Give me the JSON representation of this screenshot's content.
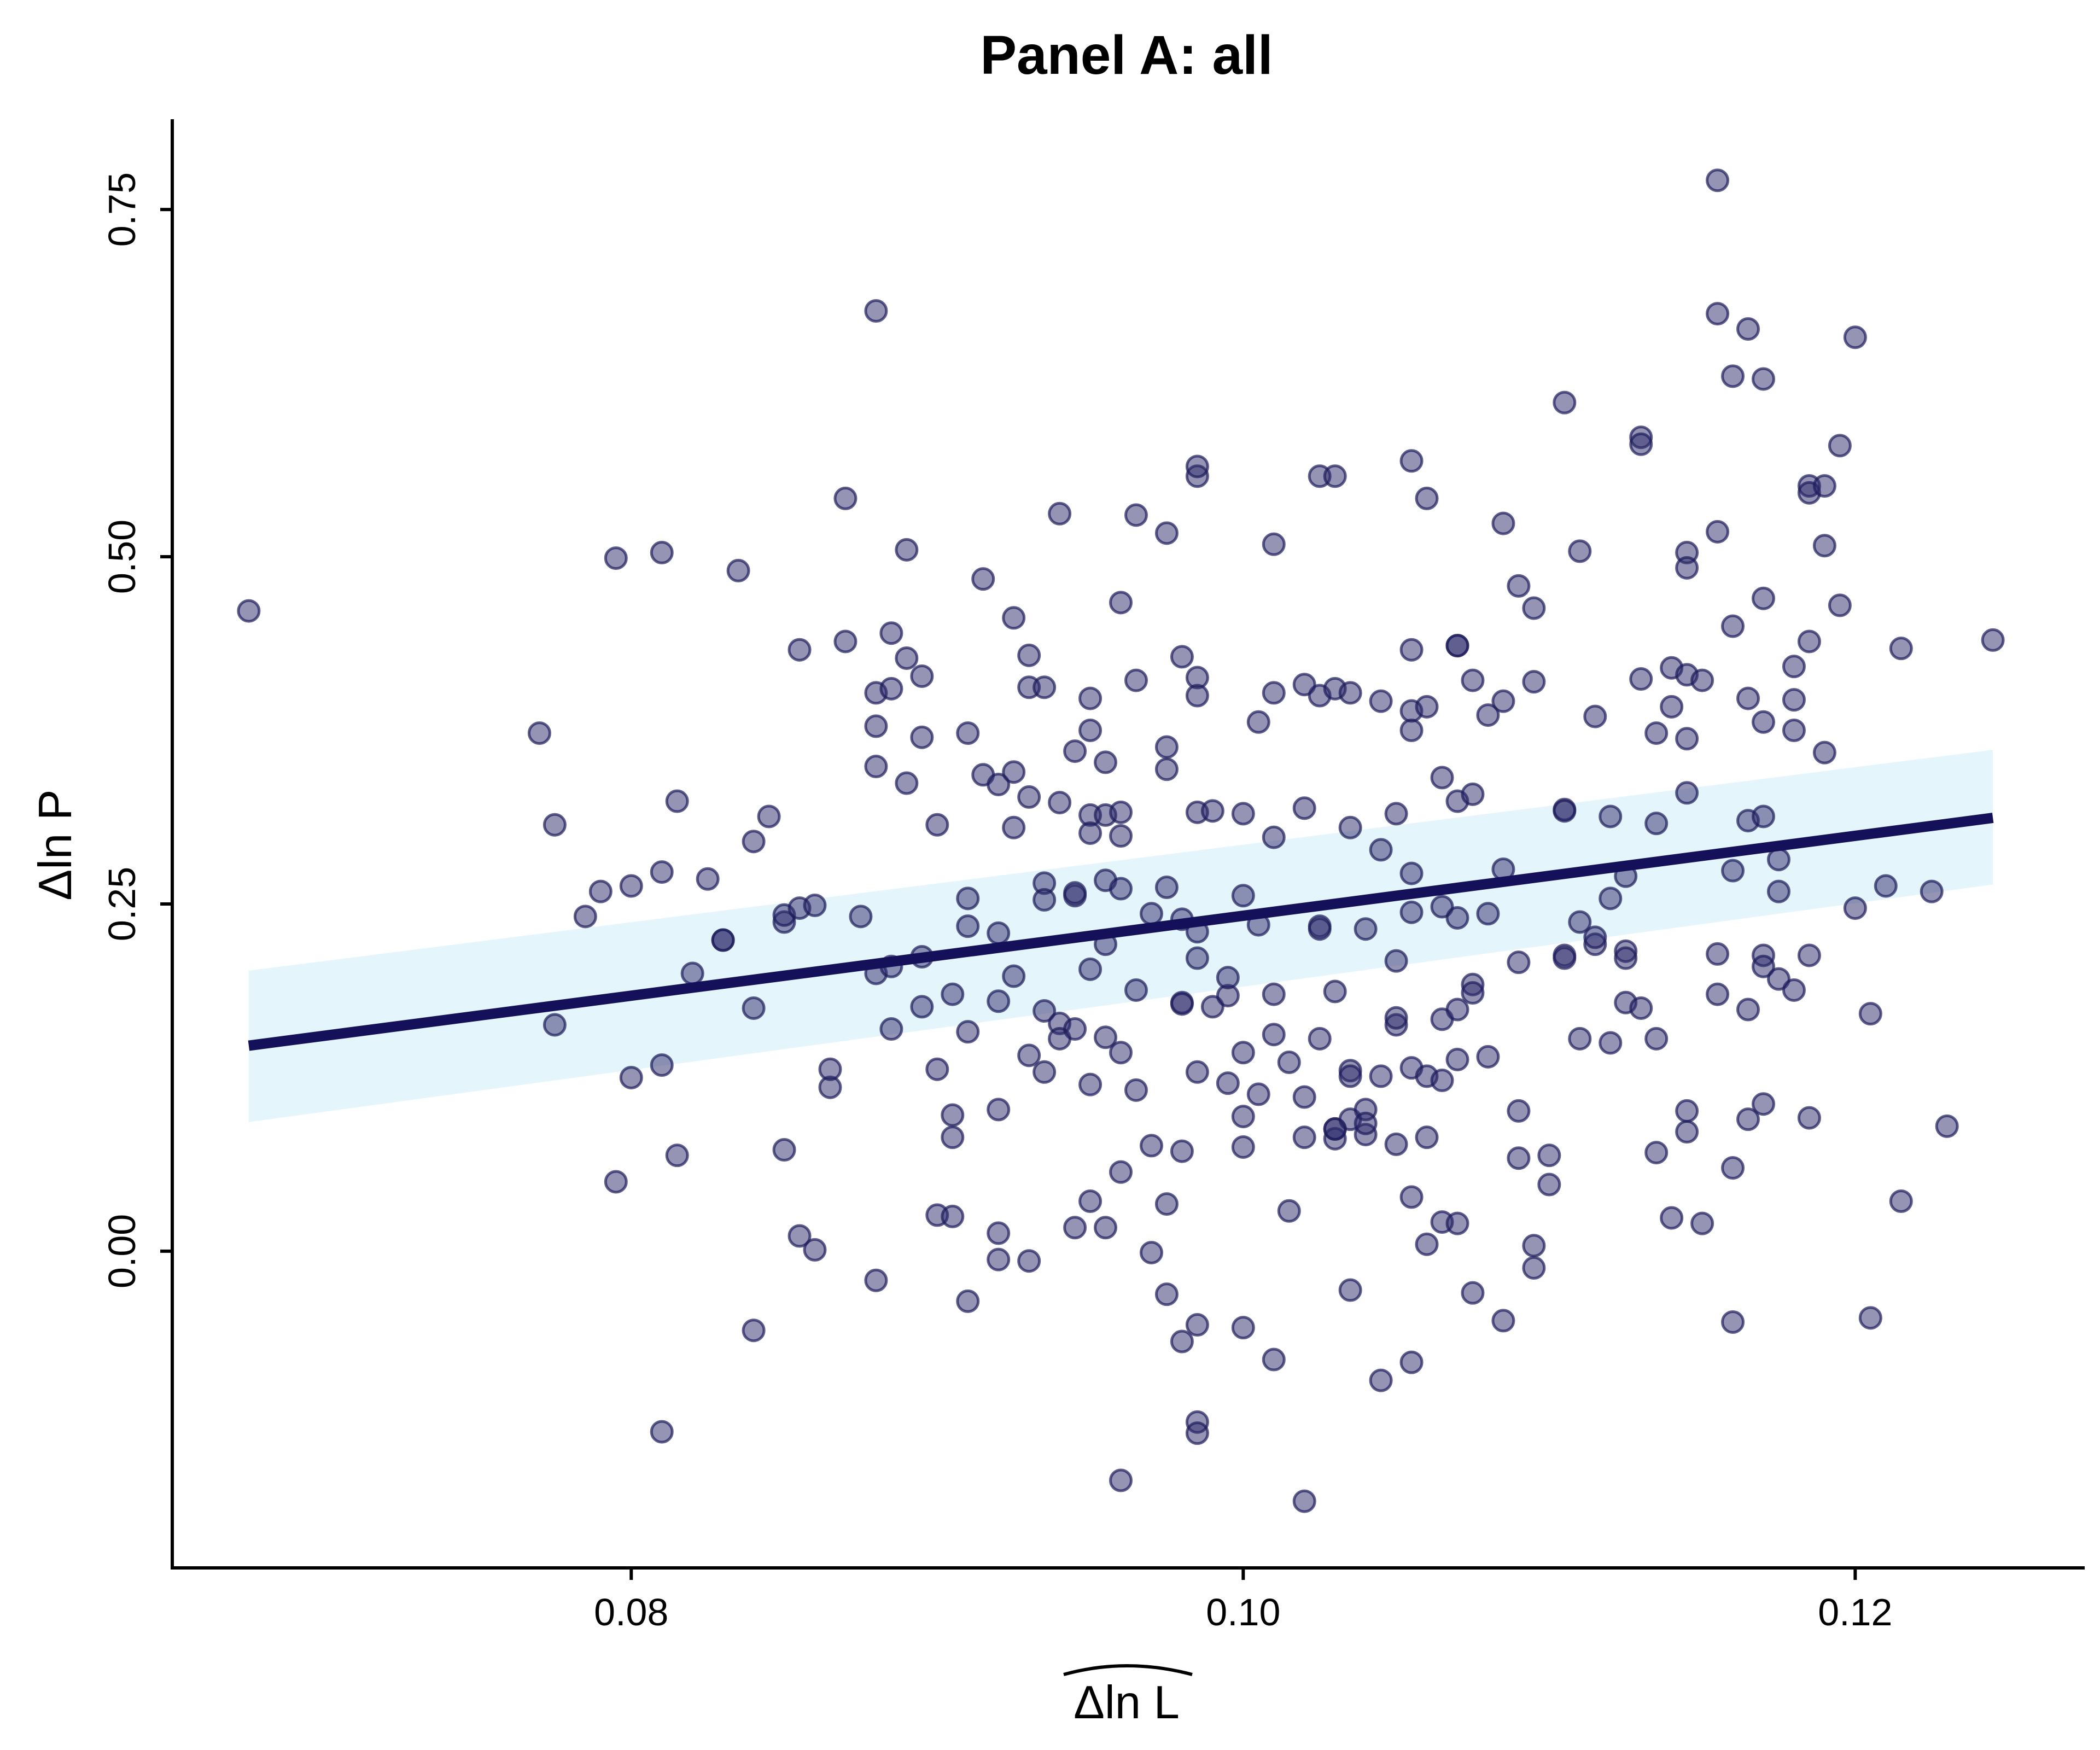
{
  "chart_data": {
    "type": "scatter",
    "title": "Panel A: all",
    "xlabel": "Δln L",
    "xlabel_hat": true,
    "ylabel": "Δln P",
    "xlim": [
      0.065,
      0.1275
    ],
    "ylim": [
      -0.228,
      0.815
    ],
    "x_ticks": [
      0.08,
      0.1,
      0.12
    ],
    "x_tick_labels": [
      "0.08",
      "0.10",
      "0.12"
    ],
    "y_ticks": [
      0.0,
      0.25,
      0.5,
      0.75
    ],
    "y_tick_labels": [
      "0.00",
      "0.25",
      "0.50",
      "0.75"
    ],
    "grid": false,
    "legend": "none",
    "colors": {
      "point_fill": "#2b2a6b",
      "point_stroke": "#1c1b5a",
      "line": "#14105a",
      "band": "#dff3fa"
    },
    "fit": {
      "x": [
        0.0675,
        0.1245
      ],
      "y": [
        0.148,
        0.312
      ],
      "ci_low": [
        0.093,
        0.264
      ],
      "ci_high": [
        0.202,
        0.361
      ]
    },
    "points": [
      [
        0.0675,
        0.461
      ],
      [
        0.077,
        0.373
      ],
      [
        0.0775,
        0.307
      ],
      [
        0.0775,
        0.163
      ],
      [
        0.0785,
        0.241
      ],
      [
        0.079,
        0.259
      ],
      [
        0.0795,
        0.499
      ],
      [
        0.0795,
        0.05
      ],
      [
        0.08,
        0.125
      ],
      [
        0.08,
        0.263
      ],
      [
        0.081,
        0.503
      ],
      [
        0.081,
        0.134
      ],
      [
        0.081,
        0.273
      ],
      [
        0.081,
        -0.13
      ],
      [
        0.0815,
        0.324
      ],
      [
        0.0815,
        0.069
      ],
      [
        0.082,
        0.2
      ],
      [
        0.0825,
        0.268
      ],
      [
        0.083,
        0.224
      ],
      [
        0.083,
        0.224
      ],
      [
        0.0835,
        0.49
      ],
      [
        0.084,
        0.295
      ],
      [
        0.084,
        0.175
      ],
      [
        0.084,
        -0.057
      ],
      [
        0.0845,
        0.313
      ],
      [
        0.085,
        0.073
      ],
      [
        0.085,
        0.237
      ],
      [
        0.085,
        0.242
      ],
      [
        0.0855,
        0.247
      ],
      [
        0.0855,
        0.433
      ],
      [
        0.0855,
        0.011
      ],
      [
        0.086,
        0.001
      ],
      [
        0.086,
        0.249
      ],
      [
        0.0865,
        0.118
      ],
      [
        0.0865,
        0.131
      ],
      [
        0.087,
        0.542
      ],
      [
        0.087,
        0.439
      ],
      [
        0.0875,
        0.241
      ],
      [
        0.088,
        0.677
      ],
      [
        0.088,
        0.402
      ],
      [
        0.088,
        0.349
      ],
      [
        0.088,
        0.378
      ],
      [
        0.088,
        0.2
      ],
      [
        0.088,
        -0.021
      ],
      [
        0.0885,
        0.445
      ],
      [
        0.0885,
        0.205
      ],
      [
        0.0885,
        0.16
      ],
      [
        0.0885,
        0.405
      ],
      [
        0.089,
        0.505
      ],
      [
        0.089,
        0.427
      ],
      [
        0.089,
        0.337
      ],
      [
        0.0895,
        0.414
      ],
      [
        0.0895,
        0.37
      ],
      [
        0.0895,
        0.212
      ],
      [
        0.0895,
        0.176
      ],
      [
        0.09,
        0.307
      ],
      [
        0.09,
        0.131
      ],
      [
        0.09,
        0.026
      ],
      [
        0.0905,
        0.025
      ],
      [
        0.0905,
        0.098
      ],
      [
        0.0905,
        0.185
      ],
      [
        0.0905,
        0.082
      ],
      [
        0.091,
        0.373
      ],
      [
        0.091,
        0.254
      ],
      [
        0.091,
        0.234
      ],
      [
        0.091,
        0.158
      ],
      [
        0.091,
        -0.036
      ],
      [
        0.0915,
        0.484
      ],
      [
        0.0915,
        0.343
      ],
      [
        0.092,
        0.336
      ],
      [
        0.092,
        0.229
      ],
      [
        0.092,
        0.18
      ],
      [
        0.092,
        0.102
      ],
      [
        0.092,
        0.013
      ],
      [
        0.092,
        -0.006
      ],
      [
        0.0925,
        0.456
      ],
      [
        0.0925,
        0.345
      ],
      [
        0.0925,
        0.305
      ],
      [
        0.0925,
        0.198
      ],
      [
        0.093,
        0.429
      ],
      [
        0.093,
        0.406
      ],
      [
        0.093,
        0.327
      ],
      [
        0.093,
        0.141
      ],
      [
        0.093,
        -0.007
      ],
      [
        0.0935,
        0.406
      ],
      [
        0.0935,
        0.265
      ],
      [
        0.0935,
        0.253
      ],
      [
        0.0935,
        0.173
      ],
      [
        0.0935,
        0.129
      ],
      [
        0.094,
        0.531
      ],
      [
        0.094,
        0.323
      ],
      [
        0.094,
        0.164
      ],
      [
        0.094,
        0.153
      ],
      [
        0.0945,
        0.36
      ],
      [
        0.0945,
        0.256
      ],
      [
        0.0945,
        0.258
      ],
      [
        0.0945,
        0.16
      ],
      [
        0.0945,
        0.017
      ],
      [
        0.095,
        0.398
      ],
      [
        0.095,
        0.375
      ],
      [
        0.095,
        0.314
      ],
      [
        0.095,
        0.301
      ],
      [
        0.095,
        0.203
      ],
      [
        0.095,
        0.12
      ],
      [
        0.095,
        0.036
      ],
      [
        0.0955,
        0.352
      ],
      [
        0.0955,
        0.314
      ],
      [
        0.0955,
        0.267
      ],
      [
        0.0955,
        0.221
      ],
      [
        0.0955,
        0.154
      ],
      [
        0.0955,
        0.017
      ],
      [
        0.096,
        0.467
      ],
      [
        0.096,
        0.316
      ],
      [
        0.096,
        0.299
      ],
      [
        0.096,
        0.261
      ],
      [
        0.096,
        0.143
      ],
      [
        0.096,
        0.057
      ],
      [
        0.096,
        -0.165
      ],
      [
        0.0965,
        0.53
      ],
      [
        0.0965,
        0.411
      ],
      [
        0.0965,
        0.188
      ],
      [
        0.0965,
        0.116
      ],
      [
        0.097,
        0.243
      ],
      [
        0.097,
        0.076
      ],
      [
        0.097,
        -0.001
      ],
      [
        0.0975,
        0.517
      ],
      [
        0.0975,
        0.363
      ],
      [
        0.0975,
        0.347
      ],
      [
        0.0975,
        0.262
      ],
      [
        0.0975,
        0.034
      ],
      [
        0.0975,
        -0.031
      ],
      [
        0.098,
        0.428
      ],
      [
        0.098,
        0.239
      ],
      [
        0.098,
        0.179
      ],
      [
        0.098,
        0.178
      ],
      [
        0.098,
        0.072
      ],
      [
        0.098,
        -0.065
      ],
      [
        0.0985,
        0.558
      ],
      [
        0.0985,
        0.565
      ],
      [
        0.0985,
        0.413
      ],
      [
        0.0985,
        0.4
      ],
      [
        0.0985,
        0.316
      ],
      [
        0.0985,
        0.23
      ],
      [
        0.0985,
        0.211
      ],
      [
        0.0985,
        0.129
      ],
      [
        0.0985,
        -0.053
      ],
      [
        0.0985,
        -0.123
      ],
      [
        0.0985,
        -0.131
      ],
      [
        0.099,
        0.317
      ],
      [
        0.099,
        0.176
      ],
      [
        0.0995,
        0.121
      ],
      [
        0.0995,
        0.184
      ],
      [
        0.0995,
        0.197
      ],
      [
        0.1,
        0.315
      ],
      [
        0.1,
        0.256
      ],
      [
        0.1,
        0.143
      ],
      [
        0.1,
        0.097
      ],
      [
        0.1,
        0.075
      ],
      [
        0.1,
        -0.055
      ],
      [
        0.1005,
        0.381
      ],
      [
        0.1005,
        0.235
      ],
      [
        0.1005,
        0.113
      ],
      [
        0.101,
        0.509
      ],
      [
        0.101,
        0.402
      ],
      [
        0.101,
        0.298
      ],
      [
        0.101,
        0.185
      ],
      [
        0.101,
        0.156
      ],
      [
        0.101,
        -0.078
      ],
      [
        0.1015,
        0.136
      ],
      [
        0.1015,
        0.029
      ],
      [
        0.102,
        0.408
      ],
      [
        0.102,
        0.319
      ],
      [
        0.102,
        0.111
      ],
      [
        0.102,
        0.082
      ],
      [
        0.102,
        -0.18
      ],
      [
        0.1025,
        0.558
      ],
      [
        0.1025,
        0.4
      ],
      [
        0.1025,
        0.234
      ],
      [
        0.1025,
        0.232
      ],
      [
        0.1025,
        0.153
      ],
      [
        0.103,
        0.558
      ],
      [
        0.103,
        0.405
      ],
      [
        0.103,
        0.187
      ],
      [
        0.103,
        0.081
      ],
      [
        0.103,
        0.088
      ],
      [
        0.103,
        0.088
      ],
      [
        0.1035,
        0.402
      ],
      [
        0.1035,
        0.305
      ],
      [
        0.1035,
        0.13
      ],
      [
        0.1035,
        0.095
      ],
      [
        0.1035,
        0.126
      ],
      [
        0.1035,
        -0.028
      ],
      [
        0.104,
        0.232
      ],
      [
        0.104,
        0.102
      ],
      [
        0.104,
        0.084
      ],
      [
        0.104,
        0.092
      ],
      [
        0.1045,
        0.396
      ],
      [
        0.1045,
        0.289
      ],
      [
        0.1045,
        0.126
      ],
      [
        0.1045,
        -0.093
      ],
      [
        0.105,
        0.315
      ],
      [
        0.105,
        0.209
      ],
      [
        0.105,
        0.163
      ],
      [
        0.105,
        0.168
      ],
      [
        0.105,
        0.077
      ],
      [
        0.1055,
        0.569
      ],
      [
        0.1055,
        0.433
      ],
      [
        0.1055,
        0.389
      ],
      [
        0.1055,
        0.375
      ],
      [
        0.1055,
        0.272
      ],
      [
        0.1055,
        0.244
      ],
      [
        0.1055,
        0.132
      ],
      [
        0.1055,
        0.039
      ],
      [
        0.1055,
        -0.08
      ],
      [
        0.106,
        0.542
      ],
      [
        0.106,
        0.392
      ],
      [
        0.106,
        0.126
      ],
      [
        0.106,
        0.082
      ],
      [
        0.106,
        0.005
      ],
      [
        0.1065,
        0.341
      ],
      [
        0.1065,
        0.248
      ],
      [
        0.1065,
        0.167
      ],
      [
        0.1065,
        0.123
      ],
      [
        0.1065,
        0.021
      ],
      [
        0.107,
        0.436
      ],
      [
        0.107,
        0.436
      ],
      [
        0.107,
        0.324
      ],
      [
        0.107,
        0.24
      ],
      [
        0.107,
        0.174
      ],
      [
        0.107,
        0.138
      ],
      [
        0.107,
        0.02
      ],
      [
        0.1075,
        0.411
      ],
      [
        0.1075,
        0.329
      ],
      [
        0.1075,
        0.192
      ],
      [
        0.1075,
        0.186
      ],
      [
        0.1075,
        -0.03
      ],
      [
        0.108,
        0.386
      ],
      [
        0.108,
        0.243
      ],
      [
        0.108,
        0.14
      ],
      [
        0.1085,
        0.524
      ],
      [
        0.1085,
        0.396
      ],
      [
        0.1085,
        0.275
      ],
      [
        0.1085,
        -0.05
      ],
      [
        0.109,
        0.479
      ],
      [
        0.109,
        0.208
      ],
      [
        0.109,
        0.101
      ],
      [
        0.109,
        0.067
      ],
      [
        0.1095,
        0.463
      ],
      [
        0.1095,
        0.41
      ],
      [
        0.1095,
        0.004
      ],
      [
        0.1095,
        -0.012
      ],
      [
        0.11,
        0.069
      ],
      [
        0.11,
        0.048
      ],
      [
        0.1105,
        0.611
      ],
      [
        0.1105,
        0.318
      ],
      [
        0.1105,
        0.317
      ],
      [
        0.1105,
        0.213
      ],
      [
        0.1105,
        0.211
      ],
      [
        0.111,
        0.504
      ],
      [
        0.111,
        0.237
      ],
      [
        0.111,
        0.153
      ],
      [
        0.1115,
        0.385
      ],
      [
        0.1115,
        0.221
      ],
      [
        0.1115,
        0.226
      ],
      [
        0.112,
        0.313
      ],
      [
        0.112,
        0.254
      ],
      [
        0.112,
        0.15
      ],
      [
        0.1125,
        0.27
      ],
      [
        0.1125,
        0.216
      ],
      [
        0.1125,
        0.211
      ],
      [
        0.1125,
        0.179
      ],
      [
        0.113,
        0.412
      ],
      [
        0.113,
        0.586
      ],
      [
        0.113,
        0.581
      ],
      [
        0.113,
        0.175
      ],
      [
        0.1135,
        0.373
      ],
      [
        0.1135,
        0.308
      ],
      [
        0.1135,
        0.153
      ],
      [
        0.1135,
        0.071
      ],
      [
        0.114,
        0.42
      ],
      [
        0.114,
        0.392
      ],
      [
        0.114,
        0.024
      ],
      [
        0.1145,
        0.503
      ],
      [
        0.1145,
        0.492
      ],
      [
        0.1145,
        0.415
      ],
      [
        0.1145,
        0.369
      ],
      [
        0.1145,
        0.33
      ],
      [
        0.1145,
        0.086
      ],
      [
        0.1145,
        0.101
      ],
      [
        0.115,
        0.411
      ],
      [
        0.115,
        0.02
      ],
      [
        0.1155,
        0.675
      ],
      [
        0.1155,
        0.518
      ],
      [
        0.1155,
        0.214
      ],
      [
        0.1155,
        0.185
      ],
      [
        0.116,
        0.63
      ],
      [
        0.116,
        0.45
      ],
      [
        0.116,
        0.274
      ],
      [
        0.116,
        0.06
      ],
      [
        0.116,
        -0.051
      ],
      [
        0.1165,
        0.664
      ],
      [
        0.1165,
        0.398
      ],
      [
        0.1165,
        0.31
      ],
      [
        0.1165,
        0.174
      ],
      [
        0.1165,
        0.095
      ],
      [
        0.117,
        0.628
      ],
      [
        0.117,
        0.47
      ],
      [
        0.117,
        0.381
      ],
      [
        0.117,
        0.313
      ],
      [
        0.117,
        0.213
      ],
      [
        0.117,
        0.205
      ],
      [
        0.117,
        0.106
      ],
      [
        0.1175,
        0.259
      ],
      [
        0.1175,
        0.282
      ],
      [
        0.1175,
        0.196
      ],
      [
        0.118,
        0.421
      ],
      [
        0.118,
        0.375
      ],
      [
        0.118,
        0.397
      ],
      [
        0.118,
        0.188
      ],
      [
        0.1185,
        0.551
      ],
      [
        0.1185,
        0.546
      ],
      [
        0.1185,
        0.439
      ],
      [
        0.1185,
        0.213
      ],
      [
        0.1185,
        0.096
      ],
      [
        0.119,
        0.551
      ],
      [
        0.119,
        0.508
      ],
      [
        0.119,
        0.359
      ],
      [
        0.1195,
        0.58
      ],
      [
        0.1195,
        0.465
      ],
      [
        0.12,
        0.658
      ],
      [
        0.12,
        0.247
      ],
      [
        0.1205,
        0.171
      ],
      [
        0.1205,
        -0.048
      ],
      [
        0.121,
        0.263
      ],
      [
        0.1215,
        0.434
      ],
      [
        0.1215,
        0.036
      ],
      [
        0.1225,
        0.259
      ],
      [
        0.123,
        0.09
      ],
      [
        0.1155,
        0.771
      ],
      [
        0.1245,
        0.44
      ]
    ]
  }
}
